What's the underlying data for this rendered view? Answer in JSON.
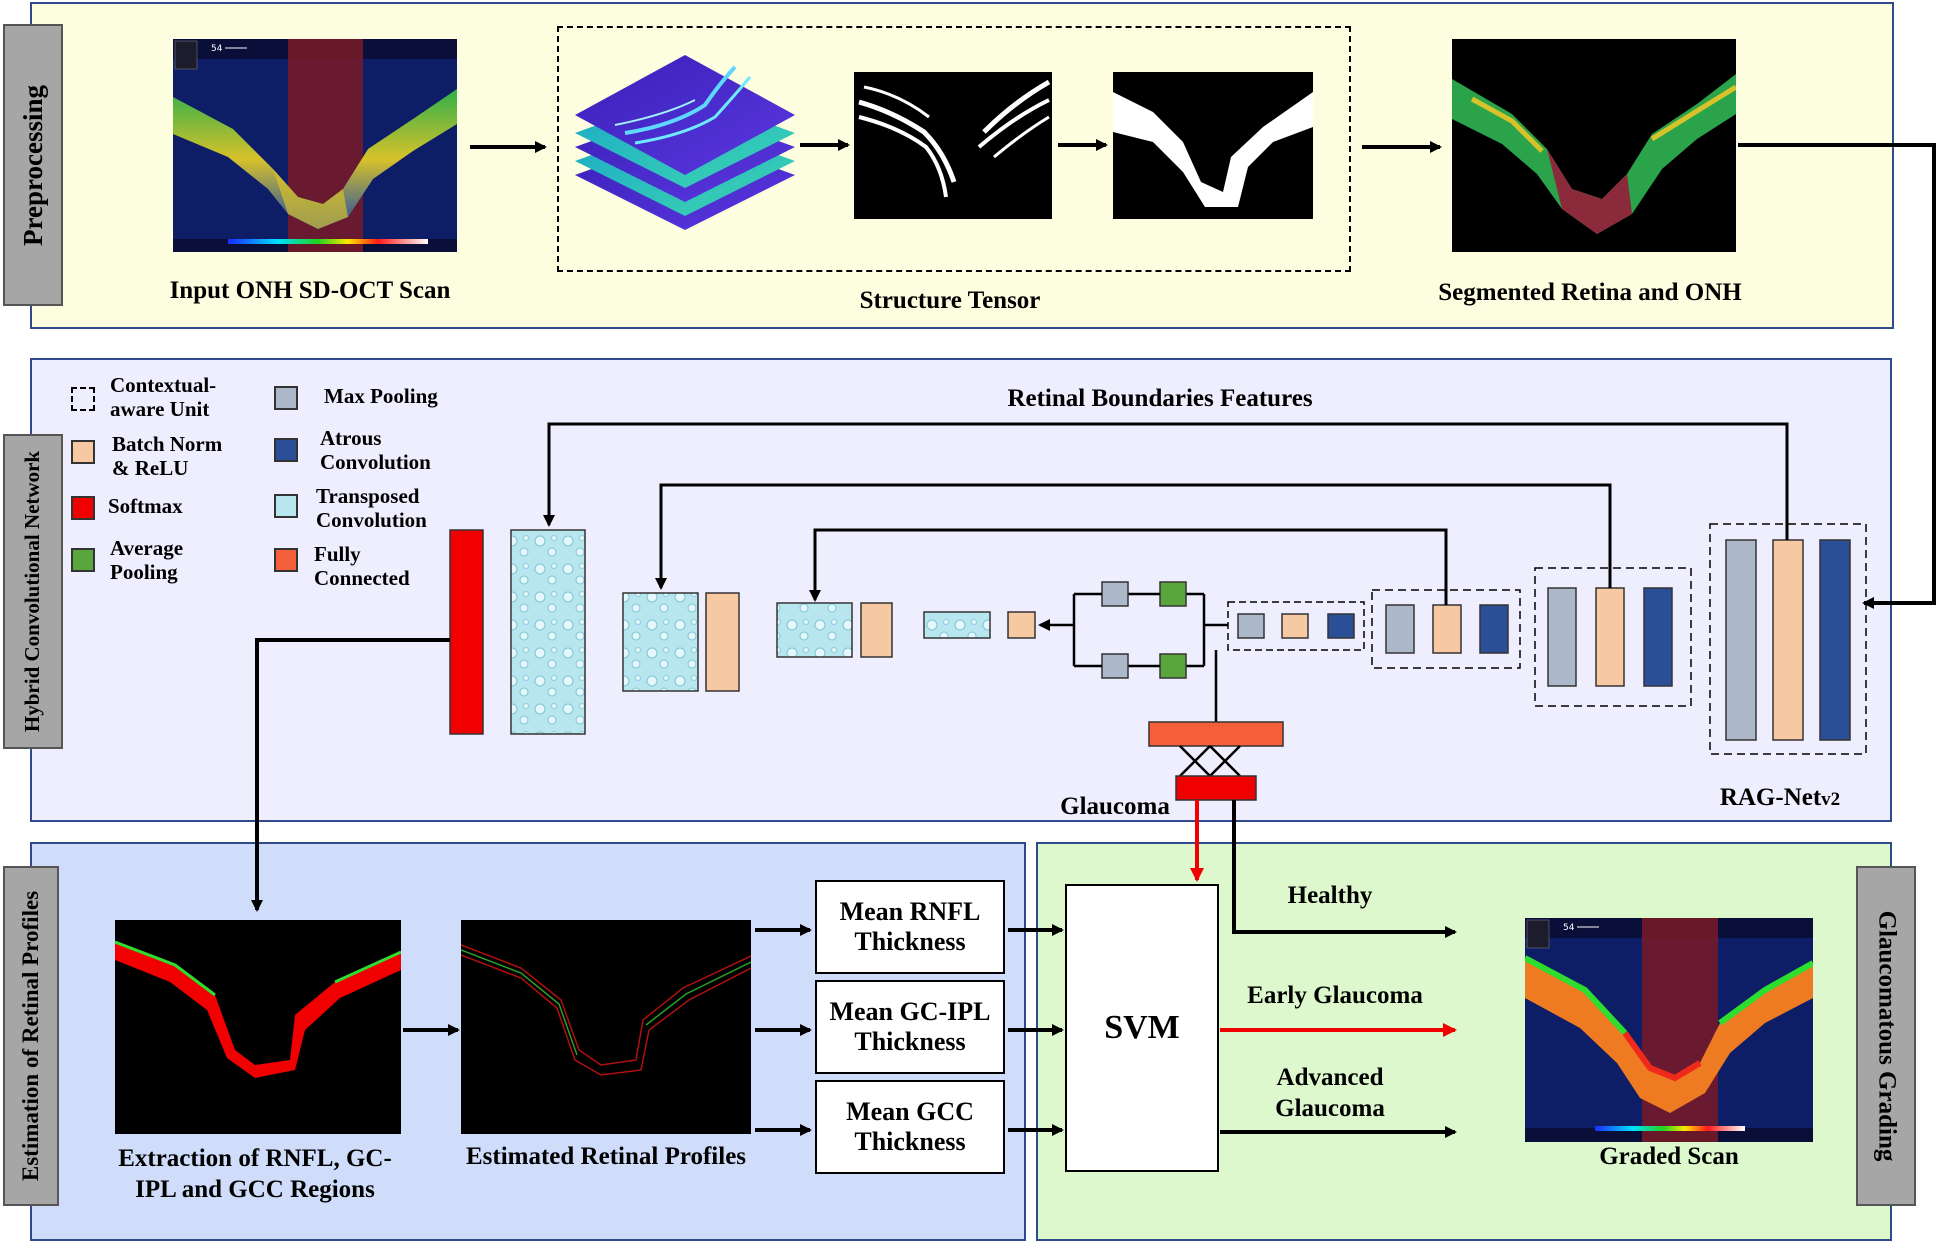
{
  "panels": {
    "preprocessing": "Preprocessing",
    "hybrid_network": "Hybrid Convolutional Network",
    "estimation": "Estimation of Retinal Profiles",
    "grading": "Glaucomatous Grading"
  },
  "preprocessing": {
    "input_label": "Input ONH SD-OCT Scan",
    "tensor_label": "Structure Tensor",
    "segmented_label": "Segmented Retina and ONH",
    "scan_badge": "54"
  },
  "legend": {
    "contextual_1": "Contextual-",
    "contextual_2": "aware  Unit",
    "batchnorm_1": "Batch Norm",
    "batchnorm_2": "& ReLU",
    "softmax": "Softmax",
    "avgpool_1": "Average",
    "avgpool_2": "Pooling",
    "maxpool": "Max Pooling",
    "atrous_1": "Atrous",
    "atrous_2": "Convolution",
    "transposed_1": "Transposed",
    "transposed_2": "Convolution",
    "fc_1": "Fully",
    "fc_2": "Connected"
  },
  "network": {
    "boundary_features": "Retinal Boundaries Features",
    "model_name": "RAG-Net",
    "model_version": "v2",
    "glaucoma": "Glaucoma"
  },
  "estimation": {
    "extraction_label_1": "Extraction of RNFL, GC-",
    "extraction_label_2": "IPL and GCC Regions",
    "profiles_label": "Estimated Retinal Profiles",
    "rnfl_1": "Mean RNFL",
    "rnfl_2": "Thickness",
    "gcipl_1": "Mean GC-IPL",
    "gcipl_2": "Thickness",
    "gcc_1": "Mean GCC",
    "gcc_2": "Thickness"
  },
  "grading": {
    "classifier": "SVM",
    "healthy": "Healthy",
    "early": "Early Glaucoma",
    "advanced_1": "Advanced",
    "advanced_2": "Glaucoma",
    "graded_label": "Graded Scan",
    "scan_badge": "54"
  },
  "colors": {
    "preprocessing_bg": "#fdfde0",
    "network_bg": "#eeeefe",
    "estimation_bg": "#cfdcfa",
    "grading_bg": "#dcf8cc",
    "batchnorm": "#f7c9a3",
    "maxpool": "#acb8ca",
    "atrous": "#2a4f96",
    "softmax": "#f00000",
    "avgpool": "#5aa63c",
    "fully_connected": "#f5603a",
    "transposed": "#b8e6ee"
  }
}
